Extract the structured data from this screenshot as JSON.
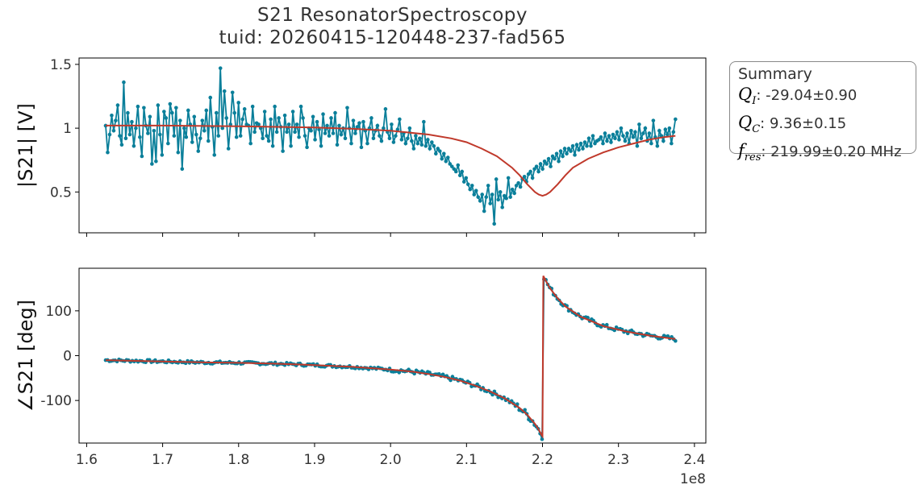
{
  "header": {
    "title_line1": "S21 ResonatorSpectroscopy",
    "title_line2": "tuid: 20260415-120448-237-fad565"
  },
  "summary": {
    "heading": "Summary",
    "rows": [
      {
        "sym": "Q",
        "sub": "I",
        "value": ": -29.04±0.90"
      },
      {
        "sym": "Q",
        "sub": "C",
        "value": ": 9.36±0.15"
      },
      {
        "sym": "f",
        "sub": "res",
        "value": ": 219.99±0.20 MHz"
      }
    ]
  },
  "colors": {
    "data": "#0a7f9a",
    "fit": "#c0392b",
    "axis": "#000000",
    "text": "#333333"
  },
  "chart_data": [
    {
      "type": "line",
      "ylabel": "|S21| [V]",
      "x_offset_label": "1e8",
      "x_range": [
        159000000.0,
        241500000.0
      ],
      "ylim": [
        0.18,
        1.55
      ],
      "yticks": [
        0.5,
        1.0,
        1.5
      ],
      "ytick_labels": [
        "0.5",
        "1",
        "1.5"
      ],
      "xticks": [
        160000000.0,
        170000000.0,
        180000000.0,
        190000000.0,
        200000000.0,
        210000000.0,
        220000000.0,
        230000000.0,
        240000000.0
      ],
      "xtick_labels": [],
      "series": [
        {
          "role": "data",
          "x_start": 162500000.0,
          "x_end": 237500000.0,
          "values": [
            1.02,
            0.81,
            0.95,
            1.1,
            0.98,
            1.06,
            1.18,
            0.94,
            0.87,
            1.36,
            0.92,
            1.12,
            0.95,
            1.05,
            0.86,
            1.0,
            1.17,
            0.93,
            0.78,
            1.16,
            1.02,
            0.96,
            1.09,
            0.72,
            0.98,
            0.74,
            1.18,
            0.95,
            0.79,
            1.13,
            1.08,
            0.88,
            1.19,
            1.12,
            0.94,
            1.16,
            0.81,
            1.06,
            0.68,
            1.0,
            0.93,
            1.14,
            1.03,
            0.89,
            1.09,
            0.95,
            0.82,
            0.92,
            1.06,
            0.98,
            1.14,
            0.9,
            1.24,
            1.01,
            0.79,
            1.12,
            0.94,
            1.47,
            1.0,
            1.29,
            1.08,
            0.84,
            1.03,
            1.28,
            1.12,
            0.93,
            1.2,
            0.94,
            1.07,
            1.15,
            1.03,
            1.02,
            0.88,
            1.17,
            0.97,
            1.04,
            1.03,
            1.0,
            0.92,
            1.13,
            0.94,
            0.9,
            1.07,
            0.86,
            1.17,
            0.97,
            1.08,
            1.01,
            0.82,
            1.1,
            0.97,
            1.03,
            0.86,
            1.13,
            0.97,
            1.03,
            0.93,
            1.17,
            1.08,
            0.94,
            0.85,
            1.0,
            0.98,
            1.09,
            0.91,
            1.05,
            0.99,
            0.86,
            1.11,
            0.96,
            1.02,
            0.94,
            1.08,
            0.96,
            1.12,
            0.87,
            1.02,
            0.95,
            1.0,
            0.92,
            1.16,
            1.0,
            0.88,
            1.06,
            0.96,
            1.01,
            1.04,
            0.85,
            1.05,
            0.98,
            0.88,
            1.0,
            1.08,
            0.92,
            0.98,
            1.02,
            0.94,
            0.9,
            1.0,
            1.15,
            0.97,
            0.92,
            1.03,
            0.89,
            0.94,
            0.99,
            1.07,
            0.91,
            0.96,
            0.88,
            0.92,
            1.0,
            0.9,
            0.84,
            0.94,
            0.88,
            0.92,
            0.87,
            1.05,
            0.86,
            0.91,
            0.84,
            0.89,
            0.86,
            0.8,
            0.84,
            0.82,
            0.76,
            0.8,
            0.74,
            0.77,
            0.72,
            0.7,
            0.68,
            0.66,
            0.71,
            0.63,
            0.66,
            0.58,
            0.61,
            0.56,
            0.52,
            0.55,
            0.48,
            0.51,
            0.46,
            0.43,
            0.48,
            0.35,
            0.46,
            0.55,
            0.41,
            0.48,
            0.25,
            0.6,
            0.44,
            0.5,
            0.38,
            0.47,
            0.45,
            0.61,
            0.46,
            0.52,
            0.49,
            0.55,
            0.57,
            0.54,
            0.6,
            0.62,
            0.58,
            0.64,
            0.66,
            0.61,
            0.68,
            0.7,
            0.66,
            0.72,
            0.68,
            0.74,
            0.72,
            0.76,
            0.7,
            0.78,
            0.76,
            0.8,
            0.74,
            0.82,
            0.78,
            0.84,
            0.8,
            0.84,
            0.82,
            0.86,
            0.79,
            0.87,
            0.83,
            0.88,
            0.84,
            0.89,
            0.86,
            0.92,
            0.86,
            0.94,
            0.88,
            0.9,
            0.91,
            0.93,
            0.88,
            0.96,
            0.9,
            0.94,
            0.89,
            0.95,
            0.92,
            0.97,
            0.91,
            1.0,
            0.94,
            0.9,
            0.96,
            0.88,
            0.98,
            0.93,
            0.97,
            0.86,
            1.03,
            0.92,
            0.96,
            1.0,
            0.9,
            0.96,
            0.88,
            1.06,
            0.93,
            0.86,
            0.98,
            0.94,
            0.9,
            0.99,
            0.95,
            1.0,
            0.88,
            0.97,
            1.07
          ]
        },
        {
          "role": "fit",
          "x": [
            162500000.0,
            170000000.0,
            180000000.0,
            190000000.0,
            195000000.0,
            200000000.0,
            205000000.0,
            208000000.0,
            210000000.0,
            212000000.0,
            214000000.0,
            216000000.0,
            217000000.0,
            218000000.0,
            219000000.0,
            219500000.0,
            220000000.0,
            220500000.0,
            221000000.0,
            222000000.0,
            223000000.0,
            224000000.0,
            226000000.0,
            228000000.0,
            230000000.0,
            232000000.0,
            234000000.0,
            236000000.0,
            237500000.0
          ],
          "y": [
            1.02,
            1.02,
            1.015,
            1.005,
            0.995,
            0.98,
            0.95,
            0.92,
            0.89,
            0.84,
            0.78,
            0.69,
            0.63,
            0.56,
            0.5,
            0.48,
            0.47,
            0.48,
            0.5,
            0.56,
            0.63,
            0.69,
            0.76,
            0.81,
            0.85,
            0.88,
            0.91,
            0.93,
            0.94
          ]
        }
      ]
    },
    {
      "type": "line",
      "ylabel": "∠S21 [deg]",
      "x_offset_label": "1e8",
      "x_range": [
        159000000.0,
        241500000.0
      ],
      "ylim": [
        -195,
        195
      ],
      "yticks": [
        -100,
        0,
        100
      ],
      "ytick_labels": [
        "-100",
        "0",
        "100"
      ],
      "xticks": [
        160000000.0,
        170000000.0,
        180000000.0,
        190000000.0,
        200000000.0,
        210000000.0,
        220000000.0,
        230000000.0,
        240000000.0
      ],
      "xtick_labels": [
        "1.6",
        "1.7",
        "1.8",
        "1.9",
        "2.0",
        "2.1",
        "2.2",
        "2.3",
        "2.4"
      ],
      "series": [
        {
          "role": "fit",
          "x": [
            162500000.0,
            170000000.0,
            175000000.0,
            180000000.0,
            185000000.0,
            190000000.0,
            195000000.0,
            200000000.0,
            203000000.0,
            205000000.0,
            207000000.0,
            209000000.0,
            211000000.0,
            213000000.0,
            215000000.0,
            217000000.0,
            218000000.0,
            219000000.0,
            219500000.0,
            219900000.0,
            220000000.0,
            220100000.0,
            220500000.0,
            221000000.0,
            222000000.0,
            223000000.0,
            225000000.0,
            228000000.0,
            231000000.0,
            234000000.0,
            237500000.0
          ],
          "y": [
            -10,
            -13,
            -15,
            -16,
            -18,
            -21,
            -25,
            -31,
            -36,
            -41,
            -47,
            -55,
            -66,
            -79,
            -95,
            -117,
            -132,
            -152,
            -165,
            -178,
            -180,
            178,
            165,
            150,
            128,
            110,
            87,
            66,
            54,
            45,
            37
          ]
        },
        {
          "role": "data",
          "x_start": 162500000.0,
          "x_end": 237500000.0,
          "points": 300,
          "noise_seed": 7
        }
      ]
    }
  ]
}
